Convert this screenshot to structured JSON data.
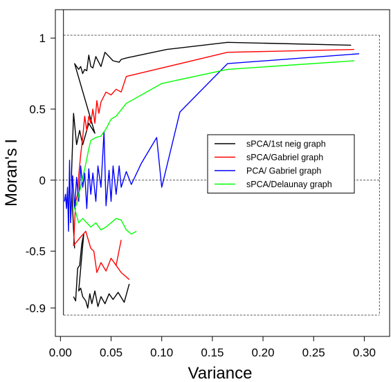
{
  "chart_data": {
    "type": "line",
    "xlabel": "Variance",
    "ylabel": "Moran's I",
    "xlim": [
      -0.005,
      0.325
    ],
    "ylim": [
      -1.1,
      1.2
    ],
    "x_ticks": [
      {
        "value": 0.0,
        "label": "0.00"
      },
      {
        "value": 0.05,
        "label": "0.05"
      },
      {
        "value": 0.1,
        "label": "0.10"
      },
      {
        "value": 0.15,
        "label": "0.15"
      },
      {
        "value": 0.2,
        "label": "0.20"
      },
      {
        "value": 0.25,
        "label": "0.25"
      },
      {
        "value": 0.3,
        "label": "0.30"
      }
    ],
    "y_ticks": [
      {
        "value": 1.0,
        "label": "1"
      },
      {
        "value": 0.5,
        "label": "0.5"
      },
      {
        "value": 0.0,
        "label": "0"
      },
      {
        "value": -0.5,
        "label": "-0.5"
      },
      {
        "value": -0.9,
        "label": "-0.9"
      }
    ],
    "reference_lines": {
      "horizontal": [
        1.02,
        0.0,
        -0.95
      ],
      "vertical": [
        0.003,
        0.315
      ]
    },
    "grid": false,
    "legend_position": "center-right",
    "series": [
      {
        "name": "sPCA/1st neig graph",
        "color": "#000000",
        "points": [
          [
            0.287,
            0.95
          ],
          [
            0.165,
            0.97
          ],
          [
            0.105,
            0.92
          ],
          [
            0.065,
            0.86
          ],
          [
            0.06,
            0.85
          ],
          [
            0.058,
            0.83
          ],
          [
            0.052,
            0.84
          ],
          [
            0.048,
            0.87
          ],
          [
            0.044,
            0.9
          ],
          [
            0.04,
            0.8
          ],
          [
            0.035,
            0.87
          ],
          [
            0.032,
            0.79
          ],
          [
            0.03,
            0.8
          ],
          [
            0.028,
            0.88
          ],
          [
            0.026,
            0.77
          ],
          [
            0.024,
            0.78
          ],
          [
            0.022,
            0.75
          ],
          [
            0.02,
            0.8
          ],
          [
            0.018,
            0.78
          ],
          [
            0.016,
            0.8
          ],
          [
            0.014,
            0.82
          ],
          [
            0.034,
            0.33
          ],
          [
            0.028,
            0.4
          ],
          [
            0.022,
            0.25
          ],
          [
            0.019,
            0.35
          ],
          [
            0.016,
            0.25
          ],
          [
            0.013,
            0.47
          ],
          [
            0.011,
            0.05
          ],
          [
            0.012,
            -0.2
          ],
          [
            0.013,
            -0.35
          ],
          [
            0.014,
            -0.48
          ]
        ]
      },
      {
        "name": "sPCA/1st neig graph",
        "color": "#000000",
        "points": [
          [
            0.013,
            -0.82
          ],
          [
            0.015,
            -0.85
          ],
          [
            0.017,
            -0.62
          ],
          [
            0.019,
            -0.6
          ],
          [
            0.021,
            -0.45
          ],
          [
            0.023,
            -0.38
          ],
          [
            0.018,
            -0.78
          ],
          [
            0.02,
            -0.76
          ],
          [
            0.022,
            -0.82
          ],
          [
            0.025,
            -0.85
          ],
          [
            0.027,
            -0.9
          ],
          [
            0.029,
            -0.8
          ],
          [
            0.031,
            -0.87
          ],
          [
            0.034,
            -0.78
          ],
          [
            0.037,
            -0.89
          ],
          [
            0.04,
            -0.82
          ],
          [
            0.044,
            -0.87
          ],
          [
            0.048,
            -0.8
          ],
          [
            0.052,
            -0.84
          ],
          [
            0.057,
            -0.79
          ],
          [
            0.063,
            -0.86
          ],
          [
            0.068,
            -0.73
          ]
        ]
      },
      {
        "name": "sPCA/Gabriel graph",
        "color": "#ff0000",
        "points": [
          [
            0.29,
            0.92
          ],
          [
            0.165,
            0.9
          ],
          [
            0.065,
            0.73
          ],
          [
            0.06,
            0.62
          ],
          [
            0.055,
            0.64
          ],
          [
            0.05,
            0.6
          ],
          [
            0.045,
            0.62
          ],
          [
            0.04,
            0.55
          ],
          [
            0.038,
            0.47
          ],
          [
            0.036,
            0.56
          ],
          [
            0.034,
            0.4
          ],
          [
            0.032,
            0.5
          ],
          [
            0.03,
            0.4
          ],
          [
            0.028,
            0.45
          ],
          [
            0.026,
            0.35
          ],
          [
            0.024,
            0.45
          ],
          [
            0.022,
            0.3
          ],
          [
            0.02,
            0.18
          ],
          [
            0.018,
            0.03
          ],
          [
            0.017,
            -0.1
          ],
          [
            0.015,
            -0.15
          ],
          [
            0.013,
            -0.46
          ],
          [
            0.02,
            -0.4
          ],
          [
            0.025,
            -0.36
          ],
          [
            0.03,
            -0.48
          ],
          [
            0.033,
            -0.5
          ],
          [
            0.036,
            -0.65
          ],
          [
            0.04,
            -0.58
          ],
          [
            0.045,
            -0.64
          ],
          [
            0.05,
            -0.55
          ],
          [
            0.055,
            -0.6
          ],
          [
            0.06,
            -0.42
          ]
        ]
      },
      {
        "name": "sPCA/Gabriel graph",
        "color": "#ff0000",
        "points": [
          [
            0.055,
            -0.6
          ],
          [
            0.06,
            -0.65
          ],
          [
            0.068,
            -0.7
          ]
        ]
      },
      {
        "name": "PCA/ Gabriel graph",
        "color": "#0000ff",
        "points": [
          [
            0.295,
            0.89
          ],
          [
            0.165,
            0.82
          ],
          [
            0.118,
            0.48
          ],
          [
            0.1,
            -0.05
          ],
          [
            0.095,
            0.3
          ],
          [
            0.08,
            0.12
          ],
          [
            0.07,
            -0.03
          ],
          [
            0.065,
            0.06
          ],
          [
            0.06,
            -0.05
          ],
          [
            0.058,
            0.1
          ],
          [
            0.055,
            -0.1
          ],
          [
            0.052,
            0.1
          ],
          [
            0.05,
            -0.15
          ],
          [
            0.048,
            0.07
          ],
          [
            0.045,
            -0.18
          ],
          [
            0.043,
            0.34
          ],
          [
            0.04,
            -0.05
          ],
          [
            0.037,
            0.1
          ],
          [
            0.035,
            -0.15
          ],
          [
            0.032,
            0.05
          ],
          [
            0.03,
            -0.1
          ],
          [
            0.028,
            0.08
          ],
          [
            0.026,
            -0.2
          ],
          [
            0.024,
            0.05
          ],
          [
            0.022,
            -0.05
          ],
          [
            0.02,
            0.1
          ],
          [
            0.018,
            -0.15
          ],
          [
            0.016,
            0.02
          ],
          [
            0.014,
            -0.2
          ],
          [
            0.012,
            0.03
          ],
          [
            0.01,
            -0.3
          ],
          [
            0.009,
            0.14
          ],
          [
            0.008,
            -0.36
          ],
          [
            0.007,
            -0.05
          ],
          [
            0.006,
            -0.2
          ],
          [
            0.005,
            -0.1
          ],
          [
            0.004,
            -0.15
          ]
        ]
      },
      {
        "name": "sPCA/Delaunay graph",
        "color": "#00ff00",
        "points": [
          [
            0.29,
            0.84
          ],
          [
            0.165,
            0.78
          ],
          [
            0.1,
            0.68
          ],
          [
            0.065,
            0.54
          ],
          [
            0.055,
            0.45
          ],
          [
            0.05,
            0.43
          ],
          [
            0.045,
            0.36
          ],
          [
            0.04,
            0.31
          ],
          [
            0.035,
            0.3
          ],
          [
            0.03,
            0.28
          ],
          [
            0.028,
            0.22
          ],
          [
            0.026,
            0.15
          ],
          [
            0.024,
            0.08
          ],
          [
            0.022,
            0.02
          ],
          [
            0.02,
            -0.05
          ],
          [
            0.018,
            -0.1
          ],
          [
            0.016,
            -0.17
          ],
          [
            0.014,
            -0.2
          ],
          [
            0.018,
            -0.3
          ],
          [
            0.022,
            -0.27
          ],
          [
            0.026,
            -0.3
          ],
          [
            0.03,
            -0.33
          ],
          [
            0.035,
            -0.3
          ],
          [
            0.04,
            -0.35
          ],
          [
            0.045,
            -0.33
          ],
          [
            0.05,
            -0.3
          ],
          [
            0.055,
            -0.27
          ],
          [
            0.06,
            -0.28
          ],
          [
            0.065,
            -0.35
          ],
          [
            0.07,
            -0.38
          ],
          [
            0.075,
            -0.36
          ]
        ]
      }
    ],
    "legend": [
      {
        "label": "sPCA/1st neig graph",
        "color": "#000000"
      },
      {
        "label": "sPCA/Gabriel graph",
        "color": "#ff0000"
      },
      {
        "label": "PCA/ Gabriel graph",
        "color": "#0000ff"
      },
      {
        "label": "sPCA/Delaunay graph",
        "color": "#00ff00"
      }
    ]
  }
}
